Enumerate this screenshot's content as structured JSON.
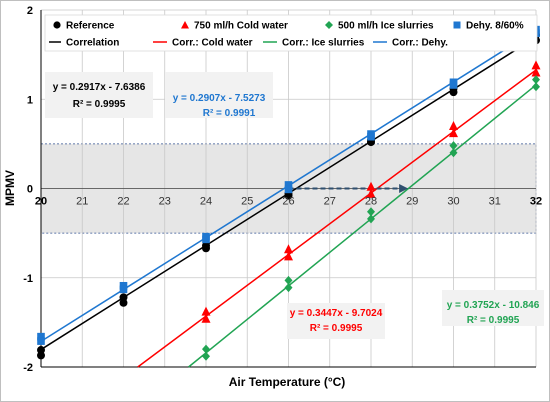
{
  "chart_data": {
    "type": "scatter",
    "xlabel": "Air Temperature (°C)",
    "ylabel": "MPMV",
    "xlim": [
      20,
      32
    ],
    "ylim": [
      -2,
      2
    ],
    "x_ticks": [
      "20",
      "21",
      "22",
      "23",
      "24",
      "25",
      "26",
      "27",
      "28",
      "29",
      "30",
      "31",
      "32"
    ],
    "y_ticks": [
      "2",
      "1",
      "0",
      "-1",
      "-2"
    ],
    "grid": true,
    "legend_position": "top",
    "comfort_band": {
      "y_min": -0.5,
      "y_max": 0.5,
      "color": "#e6e6e6"
    },
    "series": [
      {
        "name": "Reference",
        "marker": "circle",
        "color": "#000000",
        "points": [
          [
            20,
            -1.81
          ],
          [
            20,
            -1.87
          ],
          [
            22,
            -1.22
          ],
          [
            22,
            -1.28
          ],
          [
            24,
            -0.64
          ],
          [
            24,
            -0.67
          ],
          [
            26,
            -0.06
          ],
          [
            26,
            -0.08
          ],
          [
            28,
            0.52
          ],
          [
            28,
            0.54
          ],
          [
            30,
            1.08
          ],
          [
            30,
            1.12
          ],
          [
            32,
            1.66
          ],
          [
            32,
            1.72
          ]
        ]
      },
      {
        "name": "750 ml/h Cold water",
        "marker": "triangle",
        "color": "#ff0000",
        "points": [
          [
            24,
            -1.38
          ],
          [
            24,
            -1.46
          ],
          [
            26,
            -0.68
          ],
          [
            26,
            -0.76
          ],
          [
            28,
            0.02
          ],
          [
            28,
            -0.06
          ],
          [
            30,
            0.7
          ],
          [
            30,
            0.62
          ],
          [
            32,
            1.38
          ],
          [
            32,
            1.3
          ]
        ]
      },
      {
        "name": "500 ml/h Ice slurries",
        "marker": "diamond",
        "color": "#21a453",
        "points": [
          [
            24,
            -1.8
          ],
          [
            24,
            -1.88
          ],
          [
            26,
            -1.03
          ],
          [
            26,
            -1.11
          ],
          [
            28,
            -0.26
          ],
          [
            28,
            -0.34
          ],
          [
            30,
            0.48
          ],
          [
            30,
            0.4
          ],
          [
            32,
            1.22
          ],
          [
            32,
            1.14
          ]
        ]
      },
      {
        "name": "Dehy. 8/60%",
        "marker": "square",
        "color": "#1f77d0",
        "points": [
          [
            20,
            -1.66
          ],
          [
            20,
            -1.71
          ],
          [
            22,
            -1.09
          ],
          [
            22,
            -1.13
          ],
          [
            24,
            -0.54
          ],
          [
            24,
            -0.57
          ],
          [
            26,
            0.04
          ],
          [
            26,
            -0.01
          ],
          [
            28,
            0.58
          ],
          [
            28,
            0.61
          ],
          [
            30,
            1.16
          ],
          [
            30,
            1.19
          ],
          [
            32,
            1.74
          ],
          [
            32,
            1.78
          ]
        ]
      }
    ],
    "fits": [
      {
        "name": "Correlation",
        "color": "#000000",
        "slope": 0.2917,
        "intercept": -7.6386,
        "x_range": [
          20,
          32
        ]
      },
      {
        "name": "Corr.: Cold water",
        "color": "#ff0000",
        "slope": 0.3447,
        "intercept": -9.7024,
        "x_range": [
          20,
          32
        ]
      },
      {
        "name": "Corr.: Ice slurries",
        "color": "#21a453",
        "slope": 0.3752,
        "intercept": -10.846,
        "x_range": [
          20,
          32
        ]
      },
      {
        "name": "Corr.: Dehy.",
        "color": "#1f77d0",
        "slope": 0.2907,
        "intercept": -7.5273,
        "x_range": [
          20,
          32
        ]
      }
    ],
    "arrow": {
      "x_start": 26,
      "x_end": 28.9,
      "y": 0,
      "color": "#2f4f6f"
    },
    "annotations": [
      {
        "line1": "y = 0.2917x - 7.6386",
        "line2": "R² = 0.9995",
        "color": "#000000"
      },
      {
        "line1": "y = 0.2907x - 7.5273",
        "line2": "R² = 0.9991",
        "color": "#1f77d0"
      },
      {
        "line1": "y = 0.3447x - 9.7024",
        "line2": "R² = 0.9995",
        "color": "#ff0000"
      },
      {
        "line1": "y = 0.3752x - 10.846",
        "line2": "R² = 0.9995",
        "color": "#21a453"
      }
    ]
  }
}
